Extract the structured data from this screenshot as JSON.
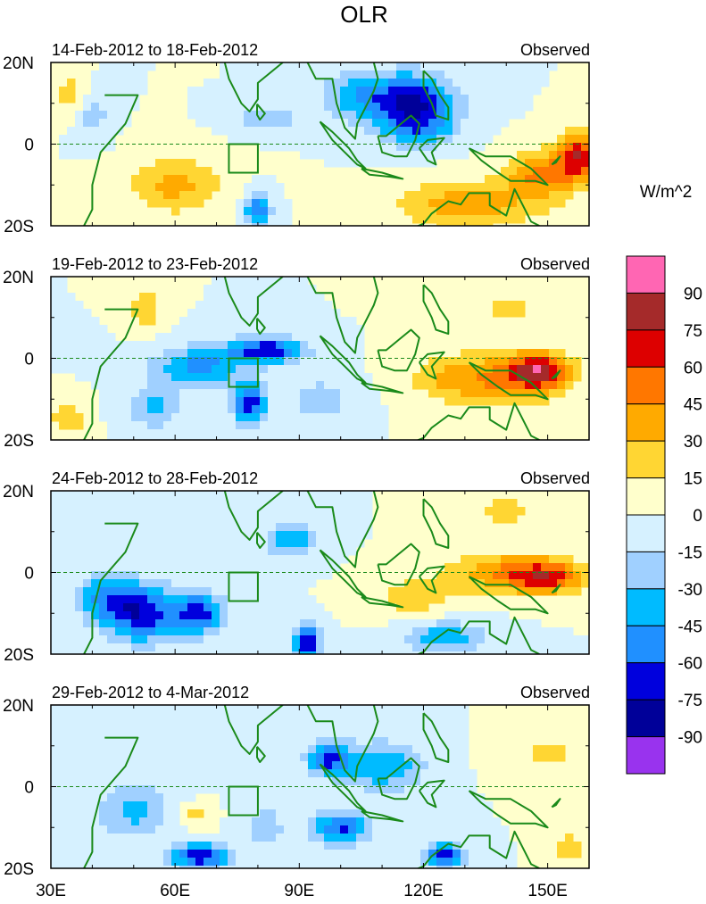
{
  "chart_data": {
    "type": "heatmap",
    "title": "OLR",
    "units": "W/m^2",
    "x_range": [
      30,
      160
    ],
    "x_ticks": [
      30,
      60,
      90,
      120,
      150
    ],
    "x_tick_labels": [
      "30E",
      "60E",
      "90E",
      "120E",
      "150E"
    ],
    "y_range": [
      -20,
      20
    ],
    "y_ticks": [
      20,
      0,
      -20
    ],
    "y_tick_labels": [
      "20N",
      "0",
      "20S"
    ],
    "legend_placement": "right",
    "colorbar": {
      "levels": [
        90,
        75,
        60,
        45,
        30,
        15,
        0,
        -15,
        -30,
        -45,
        -60,
        -75,
        -90
      ],
      "level_labels": [
        "90",
        "75",
        "60",
        "45",
        "30",
        "15",
        "0",
        "-15",
        "-30",
        "-45",
        "-60",
        "-75",
        "-90"
      ],
      "colors": [
        "#ff66b3",
        "#a52a2a",
        "#dd0000",
        "#ff7700",
        "#ffaa00",
        "#ffd633",
        "#ffffcc",
        "#d6f1ff",
        "#a0d0ff",
        "#00bbff",
        "#2090ff",
        "#0000dd",
        "#000099",
        "#9933ee"
      ]
    },
    "box_region": {
      "lon": [
        73,
        80
      ],
      "lat": [
        -7,
        0
      ]
    },
    "panels": [
      {
        "period": "14-Feb-2012 to 18-Feb-2012",
        "label": "Observed",
        "anomalies": [
          {
            "lon": 117,
            "lat": 10,
            "value": -82,
            "rlon": 10,
            "rlat": 7
          },
          {
            "lon": 103,
            "lat": 12,
            "value": -35,
            "rlon": 8,
            "rlat": 6
          },
          {
            "lon": 120,
            "lat": 3,
            "value": -30,
            "rlon": 8,
            "rlat": 4
          },
          {
            "lon": 82,
            "lat": 6,
            "value": -28,
            "rlon": 8,
            "rlat": 3
          },
          {
            "lon": 80,
            "lat": -16,
            "value": -62,
            "rlon": 3,
            "rlat": 4
          },
          {
            "lon": 40,
            "lat": 8,
            "value": -25,
            "rlon": 4,
            "rlat": 6
          },
          {
            "lon": 60,
            "lat": -10,
            "value": 35,
            "rlon": 11,
            "rlat": 7
          },
          {
            "lon": 35,
            "lat": 12,
            "value": 25,
            "rlon": 5,
            "rlat": 5
          },
          {
            "lon": 130,
            "lat": -15,
            "value": 40,
            "rlon": 16,
            "rlat": 6
          },
          {
            "lon": 157,
            "lat": -3,
            "value": 70,
            "rlon": 5,
            "rlat": 6
          },
          {
            "lon": 148,
            "lat": -8,
            "value": 45,
            "rlon": 8,
            "rlat": 6
          }
        ]
      },
      {
        "period": "19-Feb-2012 to 23-Feb-2012",
        "label": "Observed",
        "anomalies": [
          {
            "lon": 82,
            "lat": 2,
            "value": -72,
            "rlon": 9,
            "rlat": 3
          },
          {
            "lon": 66,
            "lat": -2,
            "value": -50,
            "rlon": 11,
            "rlat": 5
          },
          {
            "lon": 78,
            "lat": -11,
            "value": -70,
            "rlon": 4,
            "rlat": 5
          },
          {
            "lon": 95,
            "lat": -10,
            "value": -25,
            "rlon": 8,
            "rlat": 5
          },
          {
            "lon": 55,
            "lat": -12,
            "value": -35,
            "rlon": 6,
            "rlat": 5
          },
          {
            "lon": 148,
            "lat": -3,
            "value": 62,
            "rlon": 7,
            "rlat": 4
          },
          {
            "lon": 140,
            "lat": -5,
            "value": 45,
            "rlon": 14,
            "rlat": 7
          },
          {
            "lon": 125,
            "lat": -5,
            "value": 22,
            "rlon": 9,
            "rlat": 5
          },
          {
            "lon": 140,
            "lat": 12,
            "value": 20,
            "rlon": 8,
            "rlat": 4
          },
          {
            "lon": 34,
            "lat": -15,
            "value": 30,
            "rlon": 4,
            "rlat": 4
          },
          {
            "lon": 53,
            "lat": 12,
            "value": 25,
            "rlon": 4,
            "rlat": 5
          }
        ]
      },
      {
        "period": "24-Feb-2012 to 28-Feb-2012",
        "label": "Observed",
        "anomalies": [
          {
            "lon": 52,
            "lat": -10,
            "value": -70,
            "rlon": 9,
            "rlat": 7
          },
          {
            "lon": 66,
            "lat": -10,
            "value": -65,
            "rlon": 6,
            "rlat": 5
          },
          {
            "lon": 43,
            "lat": -6,
            "value": -40,
            "rlon": 7,
            "rlat": 6
          },
          {
            "lon": 92,
            "lat": -17,
            "value": -82,
            "rlon": 3,
            "rlat": 4
          },
          {
            "lon": 88,
            "lat": 8,
            "value": -45,
            "rlon": 6,
            "rlat": 4
          },
          {
            "lon": 125,
            "lat": -16,
            "value": -40,
            "rlon": 10,
            "rlat": 4
          },
          {
            "lon": 150,
            "lat": -1,
            "value": 62,
            "rlon": 9,
            "rlat": 4
          },
          {
            "lon": 138,
            "lat": 0,
            "value": 40,
            "rlon": 12,
            "rlat": 5
          },
          {
            "lon": 118,
            "lat": -6,
            "value": 25,
            "rlon": 9,
            "rlat": 5
          },
          {
            "lon": 140,
            "lat": 15,
            "value": 22,
            "rlon": 8,
            "rlat": 4
          }
        ]
      },
      {
        "period": "29-Feb-2012 to 4-Mar-2012",
        "label": "Observed",
        "anomalies": [
          {
            "lon": 97,
            "lat": 7,
            "value": -65,
            "rlon": 5,
            "rlat": 4
          },
          {
            "lon": 110,
            "lat": 5,
            "value": -45,
            "rlon": 10,
            "rlat": 6
          },
          {
            "lon": 100,
            "lat": -10,
            "value": -62,
            "rlon": 7,
            "rlat": 4
          },
          {
            "lon": 66,
            "lat": -17,
            "value": -75,
            "rlon": 7,
            "rlat": 3
          },
          {
            "lon": 125,
            "lat": -17,
            "value": -70,
            "rlon": 5,
            "rlat": 3
          },
          {
            "lon": 50,
            "lat": -6,
            "value": -35,
            "rlon": 9,
            "rlat": 7
          },
          {
            "lon": 82,
            "lat": -10,
            "value": -20,
            "rlon": 6,
            "rlat": 7
          },
          {
            "lon": 150,
            "lat": 8,
            "value": 18,
            "rlon": 10,
            "rlat": 5
          },
          {
            "lon": 65,
            "lat": -7,
            "value": 20,
            "rlon": 4,
            "rlat": 3
          },
          {
            "lon": 155,
            "lat": -15,
            "value": 25,
            "rlon": 4,
            "rlat": 4
          }
        ]
      }
    ]
  }
}
